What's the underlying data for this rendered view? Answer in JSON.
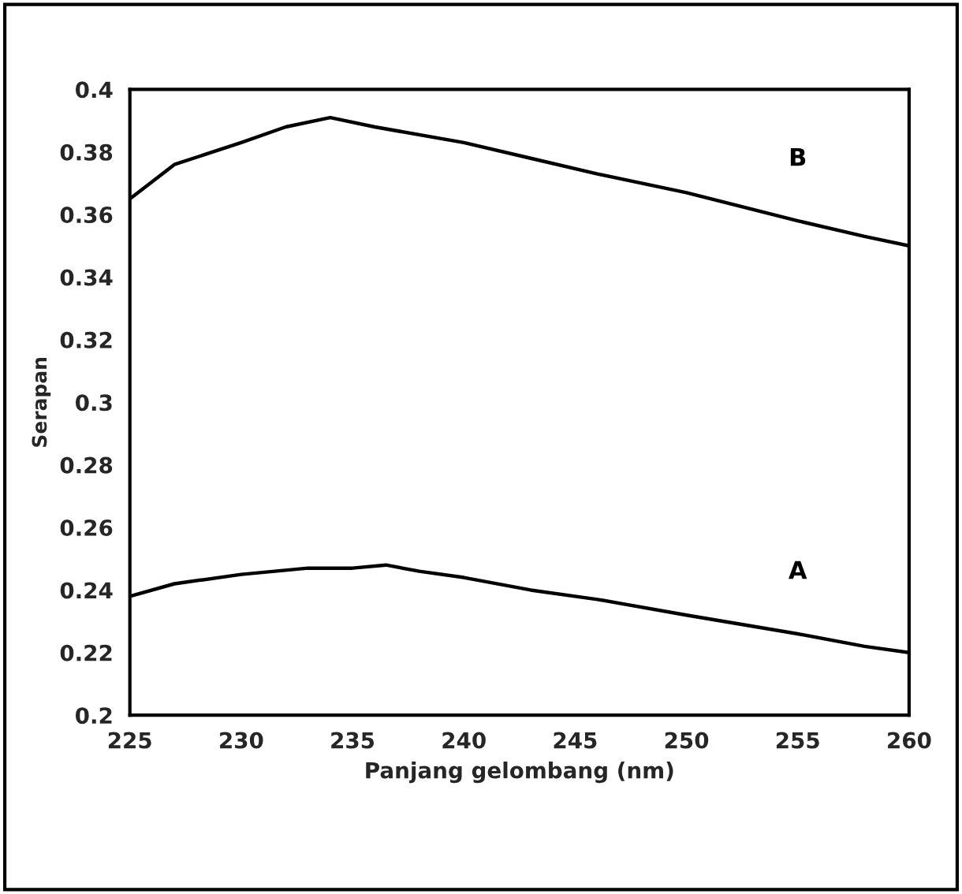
{
  "chart_data": {
    "type": "line",
    "xlabel": "Panjang gelombang (nm)",
    "ylabel": "Serapan",
    "xlim": [
      225,
      260
    ],
    "xticks": [
      225,
      230,
      235,
      240,
      245,
      250,
      255,
      260
    ],
    "ylim": [
      0.2,
      0.4
    ],
    "yticks": [
      0.2,
      0.22,
      0.24,
      0.26,
      0.28,
      0.3,
      0.32,
      0.34,
      0.36,
      0.38,
      0.4
    ],
    "grid": false,
    "legend": false,
    "marker": "none",
    "line_style": "solid",
    "series": [
      {
        "name": "B",
        "color": "#000000",
        "x": [
          225,
          227,
          230,
          232,
          234,
          236,
          240,
          243,
          246,
          250,
          255,
          258,
          260
        ],
        "values": [
          0.365,
          0.376,
          0.383,
          0.388,
          0.391,
          0.388,
          0.383,
          0.378,
          0.373,
          0.367,
          0.358,
          0.353,
          0.35
        ]
      },
      {
        "name": "A",
        "color": "#000000",
        "x": [
          225,
          227,
          230,
          233,
          235,
          236.5,
          238,
          240,
          243,
          246,
          250,
          255,
          258,
          260
        ],
        "values": [
          0.238,
          0.242,
          0.245,
          0.247,
          0.247,
          0.248,
          0.246,
          0.244,
          0.24,
          0.237,
          0.232,
          0.226,
          0.222,
          0.22
        ]
      }
    ]
  }
}
